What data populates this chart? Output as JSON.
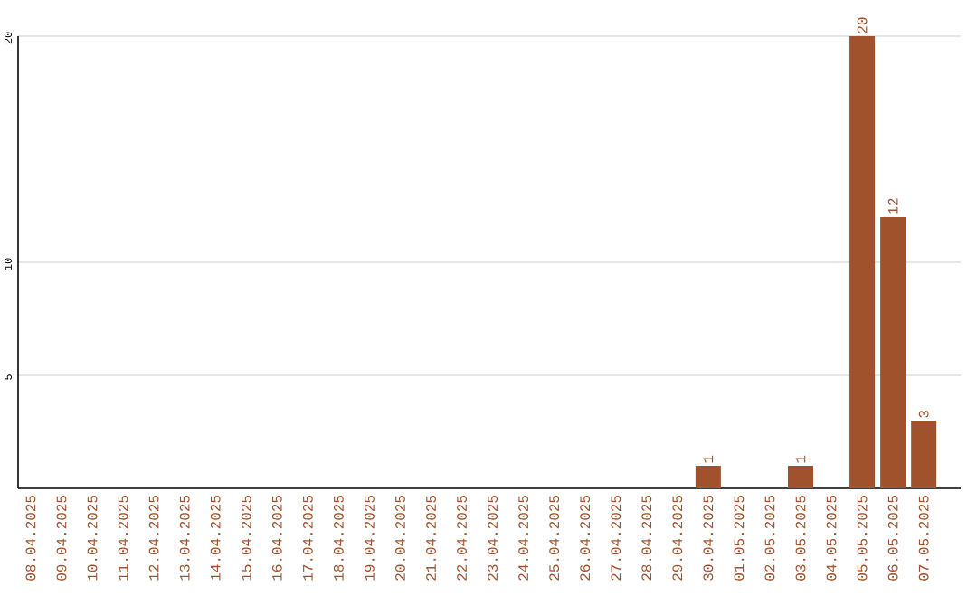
{
  "chart_data": {
    "type": "bar",
    "categories": [
      "08.04.2025",
      "09.04.2025",
      "10.04.2025",
      "11.04.2025",
      "12.04.2025",
      "13.04.2025",
      "14.04.2025",
      "15.04.2025",
      "16.04.2025",
      "17.04.2025",
      "18.04.2025",
      "19.04.2025",
      "20.04.2025",
      "21.04.2025",
      "22.04.2025",
      "23.04.2025",
      "24.04.2025",
      "25.04.2025",
      "26.04.2025",
      "27.04.2025",
      "28.04.2025",
      "29.04.2025",
      "30.04.2025",
      "01.05.2025",
      "02.05.2025",
      "03.05.2025",
      "04.05.2025",
      "05.05.2025",
      "06.05.2025",
      "07.05.2025"
    ],
    "values": [
      0,
      0,
      0,
      0,
      0,
      0,
      0,
      0,
      0,
      0,
      0,
      0,
      0,
      0,
      0,
      0,
      0,
      0,
      0,
      0,
      0,
      0,
      1,
      0,
      0,
      1,
      0,
      20,
      12,
      3
    ],
    "value_labels": [
      null,
      null,
      null,
      null,
      null,
      null,
      null,
      null,
      null,
      null,
      null,
      null,
      null,
      null,
      null,
      null,
      null,
      null,
      null,
      null,
      null,
      null,
      "1",
      null,
      null,
      "1",
      null,
      "20",
      "12",
      "3"
    ],
    "color": "#a0522d",
    "ylim": [
      0,
      20
    ],
    "yticks": [
      5,
      10,
      20
    ],
    "grid": "y"
  }
}
